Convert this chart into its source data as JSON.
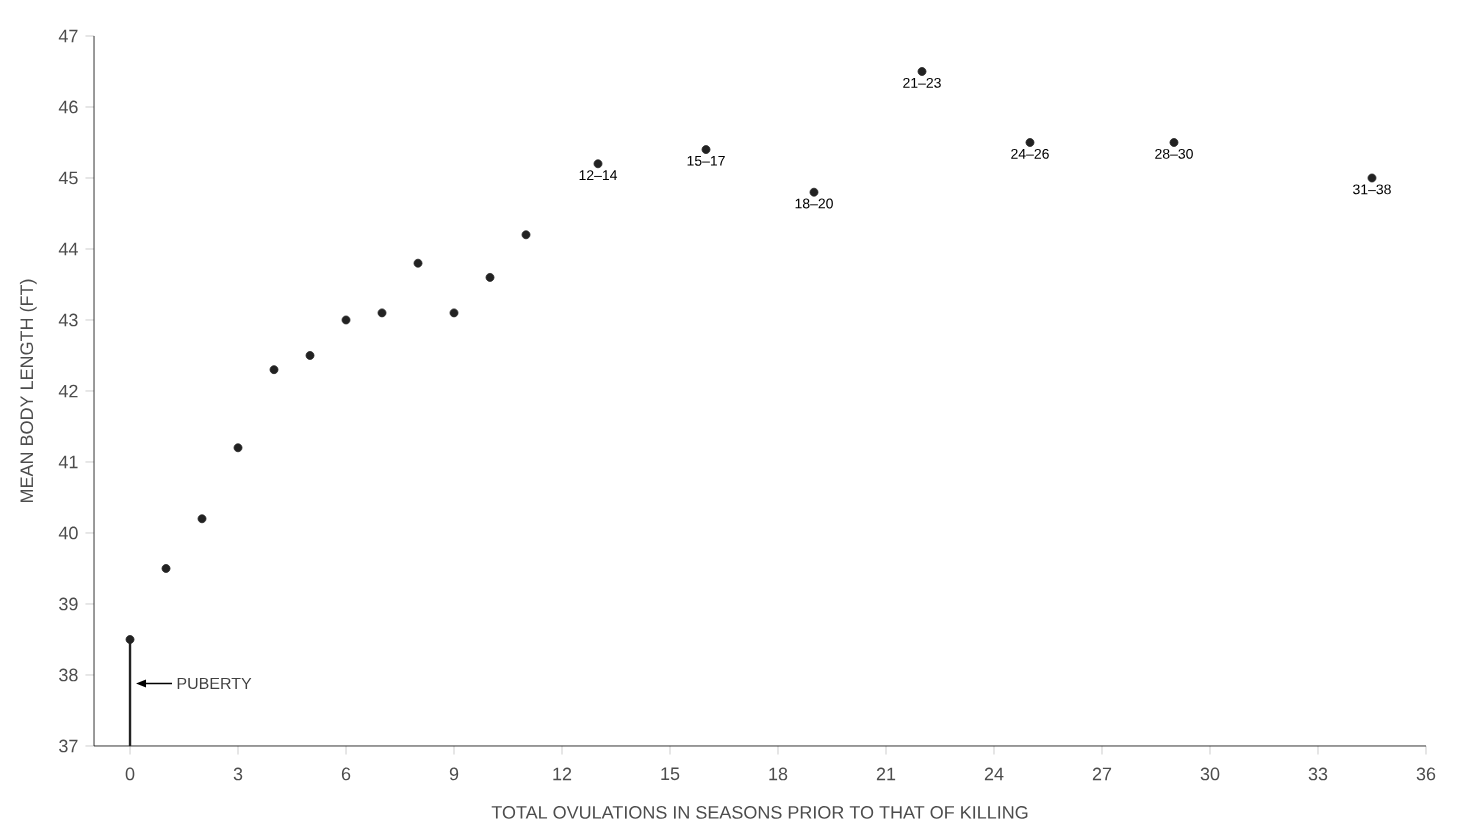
{
  "chart_data": {
    "type": "scatter",
    "xlabel": "TOTAL OVULATIONS IN SEASONS PRIOR TO THAT OF KILLING",
    "ylabel": "MEAN BODY LENGTH (FT)",
    "marker": "circle",
    "series": [
      {
        "color": "#222222",
        "x": [
          0,
          1,
          2,
          3,
          4,
          5,
          6,
          7,
          8,
          9,
          10,
          11,
          13,
          16,
          19,
          22,
          25,
          29,
          34.5
        ],
        "values": [
          38.5,
          39.5,
          40.2,
          41.2,
          42.3,
          42.5,
          43.0,
          43.1,
          43.8,
          43.1,
          43.6,
          44.2,
          45.2,
          45.4,
          44.8,
          46.5,
          45.5,
          45.5,
          45.0
        ]
      },
      {
        "type": "line",
        "color": "#222222",
        "marker": "none",
        "x": [
          0,
          0
        ],
        "values": [
          37,
          38.5
        ]
      }
    ],
    "xlim": [
      -1,
      36
    ],
    "xticks": [
      0,
      3,
      6,
      9,
      12,
      15,
      18,
      21,
      24,
      27,
      30,
      33,
      36
    ],
    "ylim": [
      37,
      47
    ],
    "yticks": [
      37,
      38,
      39,
      40,
      41,
      42,
      43,
      44,
      45,
      46,
      47
    ],
    "annotations": [
      "PUBERTY",
      {
        "text": "12–14",
        "x": 13,
        "y": 45.2
      },
      {
        "text": "15–17",
        "x": 16,
        "y": 45.4
      },
      {
        "text": "18–20",
        "x": 19,
        "y": 44.8
      },
      {
        "text": "21–23",
        "x": 22,
        "y": 46.5
      },
      {
        "text": "24–26",
        "x": 25,
        "y": 45.5
      },
      {
        "text": "28–30",
        "x": 29,
        "y": 45.5
      },
      {
        "text": "31–38",
        "x": 34.5,
        "y": 45.0
      }
    ]
  }
}
